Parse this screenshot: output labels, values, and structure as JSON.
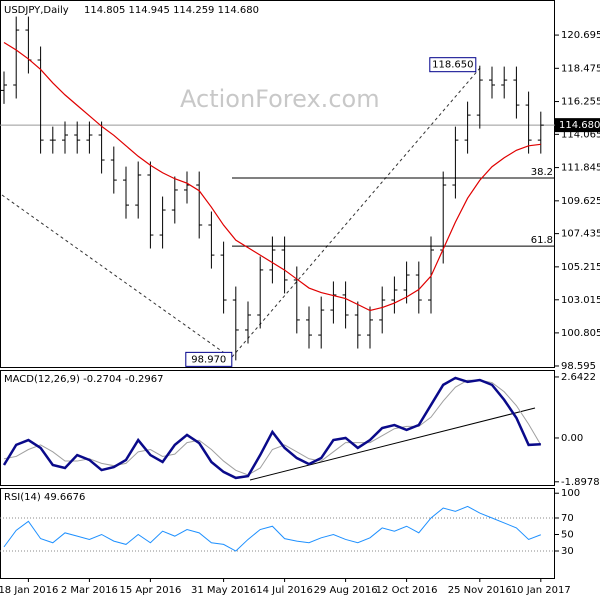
{
  "chart_data": [
    {
      "type": "ohlc",
      "title": "USDJPY,Daily",
      "subtitle": "114.805 114.945 114.259 114.680",
      "watermark": "ActionForex.com",
      "categories": [
        null,
        null,
        "18 Jan 2016",
        null,
        null,
        null,
        null,
        "2 Mar 2016",
        null,
        null,
        null,
        null,
        "15 Apr 2016",
        null,
        null,
        null,
        null,
        null,
        "31 May 2016",
        null,
        null,
        null,
        null,
        "14 Jul 2016",
        null,
        null,
        null,
        null,
        "29 Aug 2016",
        null,
        null,
        null,
        null,
        "12 Oct 2016",
        null,
        null,
        null,
        null,
        null,
        "25 Nov 2016",
        null,
        null,
        null,
        null,
        "10 Jan 2017"
      ],
      "open": [
        117.0,
        117.36,
        121.03,
        119.03,
        113.68,
        113.68,
        114.02,
        113.68,
        114.02,
        112.35,
        111.01,
        109.34,
        111.35,
        107.34,
        109.01,
        110.35,
        110.68,
        108.01,
        106.0,
        103.0,
        101.0,
        102.0,
        105.01,
        106.34,
        104.34,
        101.67,
        100.66,
        102.33,
        103.34,
        102.0,
        100.66,
        101.67,
        103.0,
        103.67,
        104.67,
        103.0,
        106.34,
        110.68,
        113.68,
        115.35,
        117.69,
        117.36,
        117.69,
        116.02,
        113.68
      ],
      "high": [
        118.26,
        121.93,
        121.93,
        119.93,
        114.58,
        114.92,
        114.92,
        114.92,
        114.92,
        113.25,
        111.91,
        112.25,
        112.25,
        109.91,
        111.25,
        111.58,
        111.58,
        108.91,
        106.9,
        103.9,
        102.9,
        105.91,
        107.24,
        107.24,
        105.24,
        102.57,
        103.23,
        104.24,
        104.24,
        102.9,
        102.57,
        103.9,
        104.57,
        105.57,
        105.57,
        107.24,
        111.58,
        114.58,
        116.25,
        118.65,
        118.59,
        118.59,
        118.59,
        116.92,
        115.58
      ],
      "low": [
        116.1,
        116.46,
        118.13,
        112.78,
        112.78,
        112.78,
        112.78,
        112.78,
        111.45,
        110.11,
        108.44,
        108.44,
        106.44,
        106.44,
        108.11,
        109.45,
        107.11,
        105.1,
        102.1,
        98.97,
        100.1,
        101.1,
        104.11,
        103.44,
        100.77,
        99.76,
        99.76,
        101.43,
        101.1,
        99.76,
        99.76,
        100.77,
        102.1,
        102.77,
        102.1,
        102.1,
        105.44,
        109.78,
        112.78,
        114.45,
        116.46,
        116.46,
        115.12,
        112.78,
        112.78
      ],
      "close": [
        117.36,
        121.03,
        119.03,
        113.68,
        113.68,
        114.02,
        113.68,
        114.02,
        112.35,
        111.01,
        109.34,
        111.35,
        107.34,
        109.01,
        110.35,
        110.68,
        108.01,
        106.0,
        103.0,
        101.0,
        102.0,
        105.01,
        106.34,
        104.34,
        101.67,
        100.66,
        102.33,
        103.34,
        102.0,
        100.66,
        101.67,
        103.0,
        103.67,
        104.67,
        103.0,
        106.34,
        110.68,
        113.68,
        115.35,
        117.69,
        117.36,
        117.69,
        116.02,
        113.68,
        114.68
      ],
      "color": "#000000",
      "moving_average": {
        "color": "#e00000",
        "values": [
          120.2,
          119.7,
          119.1,
          118.4,
          117.5,
          116.7,
          116.0,
          115.3,
          114.6,
          114.0,
          113.3,
          112.6,
          112.0,
          111.5,
          111.1,
          110.8,
          110.3,
          109.2,
          108.0,
          107.0,
          106.5,
          106.0,
          105.5,
          105.0,
          104.4,
          103.8,
          103.5,
          103.3,
          103.1,
          102.7,
          102.3,
          102.5,
          102.8,
          103.2,
          103.7,
          104.6,
          106.4,
          108.2,
          109.8,
          111.0,
          111.9,
          112.5,
          113.0,
          113.3,
          113.4
        ]
      },
      "levels": [
        {
          "label": "38.2",
          "value": 111.15
        },
        {
          "label": "61.8",
          "value": 106.6
        }
      ],
      "last_price": {
        "value": 114.68,
        "label": "114.680"
      },
      "callouts": [
        {
          "label": "118.650",
          "value": 118.65
        },
        {
          "label": "98.970",
          "value": 98.97
        }
      ],
      "ylim": [
        98.46,
        122.77
      ],
      "yticks": [
        120.695,
        118.475,
        116.255,
        114.065,
        111.845,
        109.625,
        107.435,
        105.215,
        103.015,
        100.805,
        98.595
      ]
    },
    {
      "type": "macd",
      "title": "MACD(12,26,9) -0.2704 -0.2967",
      "series": [
        {
          "color": "#0a0a8a",
          "values": [
            -1.17,
            -0.3,
            -0.09,
            -0.43,
            -1.17,
            -1.3,
            -0.74,
            -0.95,
            -1.39,
            -1.26,
            -0.95,
            -0.09,
            -0.74,
            -1.04,
            -0.3,
            0.13,
            -0.22,
            -1.04,
            -1.47,
            -1.73,
            -1.65,
            -0.74,
            0.26,
            -0.43,
            -0.87,
            -1.13,
            -0.87,
            -0.09,
            0.0,
            -0.43,
            -0.09,
            0.43,
            0.56,
            0.35,
            0.56,
            1.43,
            2.3,
            2.6,
            2.43,
            2.51,
            2.3,
            1.65,
            0.87,
            -0.3,
            -0.27
          ]
        },
        {
          "color": "#a0a0a0",
          "values": [
            -0.9,
            -0.8,
            -0.5,
            -0.3,
            -0.6,
            -1.0,
            -1.0,
            -0.9,
            -1.1,
            -1.2,
            -1.1,
            -0.6,
            -0.5,
            -0.8,
            -0.7,
            -0.2,
            -0.1,
            -0.5,
            -1.0,
            -1.4,
            -1.6,
            -1.3,
            -0.5,
            -0.3,
            -0.6,
            -0.9,
            -1.0,
            -0.6,
            -0.2,
            -0.2,
            -0.2,
            0.1,
            0.4,
            0.5,
            0.5,
            0.9,
            1.6,
            2.2,
            2.5,
            2.5,
            2.4,
            2.0,
            1.4,
            0.6,
            -0.3
          ]
        }
      ],
      "ylim": [
        -2.08,
        2.9
      ],
      "yticks": [
        2.6422,
        {
          "value": 0,
          "label": "0.00"
        },
        -1.8978
      ]
    },
    {
      "type": "line",
      "title": "RSI(14) 49.6676",
      "color": "#1e90ff",
      "values": [
        35,
        55,
        66,
        45,
        40,
        52,
        48,
        44,
        50,
        42,
        38,
        50,
        40,
        54,
        48,
        56,
        52,
        40,
        38,
        30,
        44,
        56,
        60,
        45,
        42,
        40,
        46,
        50,
        44,
        40,
        46,
        58,
        54,
        60,
        52,
        70,
        82,
        78,
        84,
        76,
        70,
        64,
        58,
        44,
        49.67
      ],
      "guide_lines": [
        30,
        70
      ],
      "ylim": [
        -2.7,
        103.9
      ],
      "yticks": [
        100,
        70,
        50,
        30
      ]
    }
  ]
}
